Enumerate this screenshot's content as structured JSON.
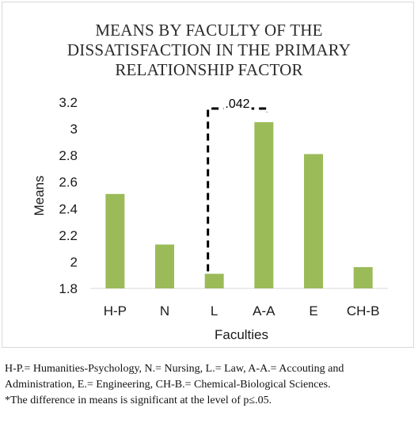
{
  "chart_data": {
    "type": "bar",
    "title_lines": [
      "MEANS BY FACULTY OF THE",
      "DISSATISFACTION  IN THE PRIMARY",
      "RELATIONSHIP  FACTOR"
    ],
    "xlabel": "Faculties",
    "ylabel": "Means",
    "categories": [
      "H-P",
      "N",
      "L",
      "A-A",
      "E",
      "CH-B"
    ],
    "values": [
      2.51,
      2.13,
      1.91,
      3.05,
      2.81,
      1.96
    ],
    "ylim": [
      1.8,
      3.2
    ],
    "yticks": [
      "1.8",
      "2",
      "2.2",
      "2.4",
      "2.6",
      "2.8",
      "3",
      "3.2"
    ],
    "bar_color": "#9bbb59",
    "grid": false,
    "annotation": {
      "text": ".042",
      "from_category": "L",
      "to_category": "A-A",
      "style": "dashed bracket"
    }
  },
  "caption": {
    "line1": "H-P.= Humanities-Psychology, N.= Nursing, L.= Law, A-A.= Accouting and Administration, E.= Engineering, CH-B.= Chemical-Biological Sciences.",
    "line2": "*The difference in means is significant at the level of p≤.05."
  }
}
